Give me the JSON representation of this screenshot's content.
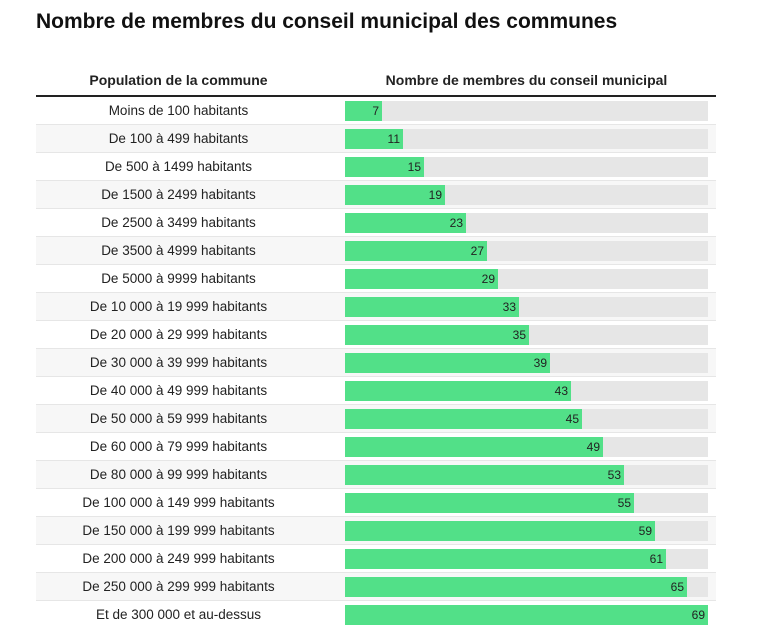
{
  "title": "Nombre de membres du conseil municipal des communes",
  "colors": {
    "bar": "#52e088",
    "track": "#e6e6e6",
    "row_alt": "#f7f7f7"
  },
  "chart_data": {
    "type": "table",
    "title": "Nombre de membres du conseil municipal des communes",
    "columns": [
      "Population de la commune",
      "Nombre de membres du conseil municipal"
    ],
    "xlim": [
      0,
      69
    ],
    "categories": [
      "Moins de 100 habitants",
      "De 100 à 499 habitants",
      "De 500 à 1499 habitants",
      "De 1500 à 2499 habitants",
      "De 2500 à 3499 habitants",
      "De 3500 à 4999 habitants",
      "De 5000 à 9999 habitants",
      "De 10 000 à 19 999 habitants",
      "De 20 000 à 29 999 habitants",
      "De 30 000 à 39 999 habitants",
      "De 40 000 à 49 999 habitants",
      "De 50 000 à 59 999 habitants",
      "De 60 000 à 79 999 habitants",
      "De 80 000 à 99 999 habitants",
      "De 100 000 à 149 999 habitants",
      "De 150 000 à 199 999 habitants",
      "De 200 000 à 249 999 habitants",
      "De 250 000 à 299 999 habitants",
      "Et de 300 000 et au-dessus"
    ],
    "values": [
      7,
      11,
      15,
      19,
      23,
      27,
      29,
      33,
      35,
      39,
      43,
      45,
      49,
      53,
      55,
      59,
      61,
      65,
      69
    ]
  }
}
